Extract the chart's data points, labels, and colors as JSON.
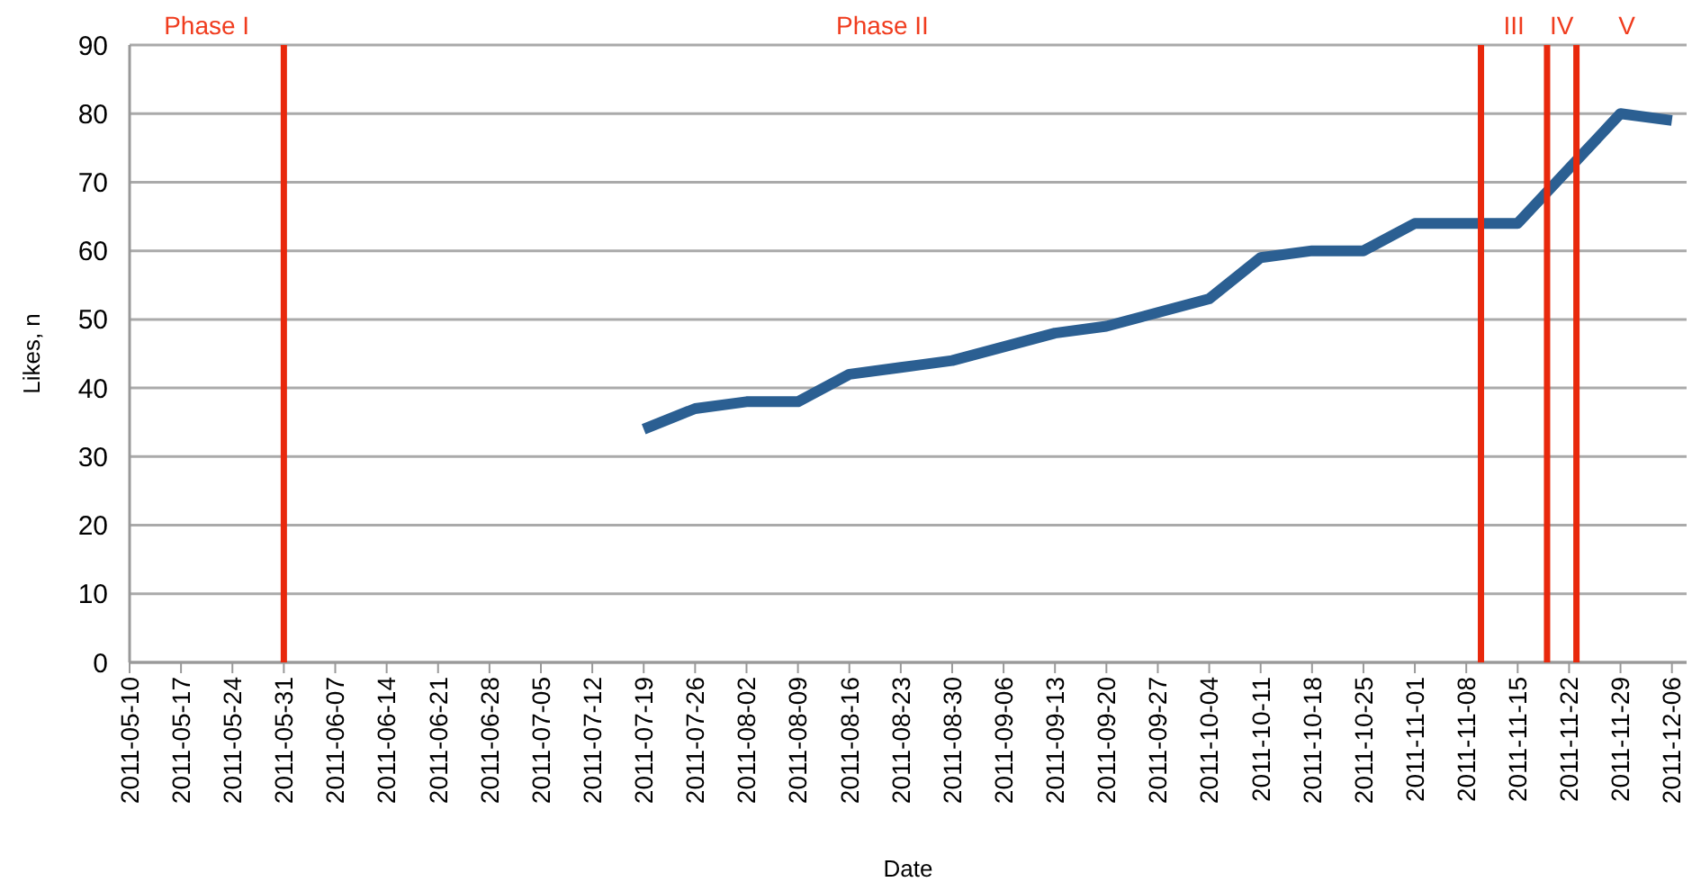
{
  "chart_data": {
    "type": "line",
    "xlabel": "Date",
    "ylabel": "Likes, n",
    "x": [
      "2011-07-19",
      "2011-07-26",
      "2011-08-02",
      "2011-08-09",
      "2011-08-16",
      "2011-08-23",
      "2011-08-30",
      "2011-09-06",
      "2011-09-13",
      "2011-09-20",
      "2011-09-27",
      "2011-10-04",
      "2011-10-11",
      "2011-10-18",
      "2011-10-25",
      "2011-11-01",
      "2011-11-08",
      "2011-11-15",
      "2011-11-22",
      "2011-11-29",
      "2011-12-06"
    ],
    "series": [
      {
        "color": "#2b5f92",
        "values": [
          34,
          37,
          38,
          38,
          42,
          43,
          44,
          46,
          48,
          49,
          51,
          53,
          59,
          60,
          60,
          64,
          64,
          64,
          72,
          80,
          79
        ]
      }
    ],
    "xlim": [
      "2011-05-10",
      "2011-12-08"
    ],
    "xticks": [
      "2011-05-10",
      "2011-05-17",
      "2011-05-24",
      "2011-05-31",
      "2011-06-07",
      "2011-06-14",
      "2011-06-21",
      "2011-06-28",
      "2011-07-05",
      "2011-07-12",
      "2011-07-19",
      "2011-07-26",
      "2011-08-02",
      "2011-08-09",
      "2011-08-16",
      "2011-08-23",
      "2011-08-30",
      "2011-09-06",
      "2011-09-13",
      "2011-09-20",
      "2011-09-27",
      "2011-10-04",
      "2011-10-11",
      "2011-10-18",
      "2011-10-25",
      "2011-11-01",
      "2011-11-08",
      "2011-11-15",
      "2011-11-22",
      "2011-11-29",
      "2011-12-06"
    ],
    "ylim": [
      0,
      90
    ],
    "yticks": [
      0,
      10,
      20,
      30,
      40,
      50,
      60,
      70,
      80,
      90
    ],
    "grid": "y",
    "marker": "none",
    "line_style": "solid",
    "ref_lines": [
      {
        "axis": "x",
        "value": "2011-05-31",
        "color": "#e8280c"
      },
      {
        "axis": "x",
        "value": "2011-11-10",
        "color": "#e8280c"
      },
      {
        "axis": "x",
        "value": "2011-11-19",
        "color": "#e8280c"
      },
      {
        "axis": "x",
        "value": "2011-11-23",
        "color": "#e8280c"
      }
    ],
    "annotations": [
      "Phase I",
      "Phase II",
      "III",
      "IV",
      "V"
    ]
  }
}
